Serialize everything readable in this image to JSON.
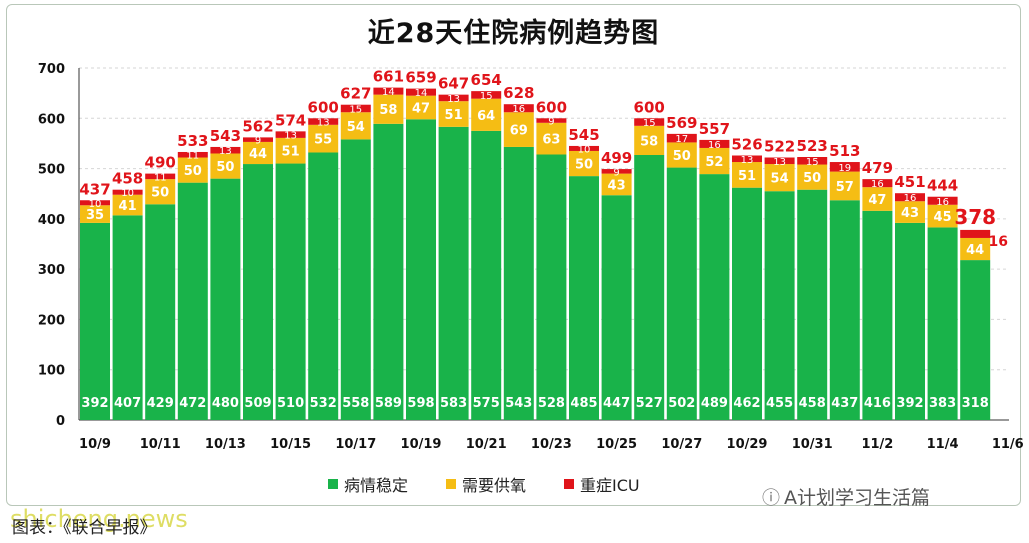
{
  "chart_data": {
    "type": "bar",
    "title": "近28天住院病例趋势图",
    "x_tick_labels": [
      "10/9",
      "10/11",
      "10/13",
      "10/15",
      "10/17",
      "10/19",
      "10/21",
      "10/23",
      "10/25",
      "10/27",
      "10/29",
      "10/31",
      "11/2",
      "11/4",
      "11/6"
    ],
    "categories": [
      "10/9",
      "10/10",
      "10/11",
      "10/12",
      "10/13",
      "10/14",
      "10/15",
      "10/16",
      "10/17",
      "10/18",
      "10/19",
      "10/20",
      "10/21",
      "10/22",
      "10/23",
      "10/24",
      "10/25",
      "10/26",
      "10/27",
      "10/28",
      "10/29",
      "10/30",
      "10/31",
      "11/1",
      "11/2",
      "11/3",
      "11/4",
      "11/5"
    ],
    "ylim": [
      0,
      700
    ],
    "yticks": [
      0,
      100,
      200,
      300,
      400,
      500,
      600,
      700
    ],
    "stacked": true,
    "series": [
      {
        "name": "病情稳定",
        "color": "#19b34a",
        "values": [
          392,
          407,
          429,
          472,
          480,
          509,
          510,
          532,
          558,
          589,
          598,
          583,
          575,
          543,
          528,
          485,
          447,
          527,
          502,
          489,
          462,
          455,
          458,
          437,
          416,
          392,
          383,
          318
        ]
      },
      {
        "name": "需要供氧",
        "color": "#f5bd14",
        "values": [
          35,
          41,
          50,
          50,
          50,
          44,
          51,
          55,
          54,
          58,
          47,
          51,
          64,
          69,
          63,
          50,
          43,
          58,
          50,
          52,
          51,
          54,
          50,
          57,
          47,
          43,
          45,
          44
        ]
      },
      {
        "name": "重症ICU",
        "color": "#e0141a",
        "values": [
          10,
          10,
          11,
          11,
          13,
          9,
          13,
          13,
          15,
          14,
          14,
          13,
          15,
          16,
          9,
          10,
          9,
          15,
          17,
          16,
          13,
          13,
          15,
          19,
          16,
          16,
          16,
          16
        ]
      }
    ],
    "totals": [
      437,
      458,
      490,
      533,
      543,
      562,
      574,
      600,
      627,
      661,
      659,
      647,
      654,
      628,
      600,
      545,
      499,
      600,
      569,
      557,
      526,
      522,
      523,
      513,
      479,
      451,
      444,
      378
    ]
  },
  "legend_labels": [
    "病情稳定",
    "需要供氧",
    "重症ICU"
  ],
  "brand": "A计划学习生活篇",
  "caption": "图表：《联合早报》",
  "watermark": "shicheng.news"
}
